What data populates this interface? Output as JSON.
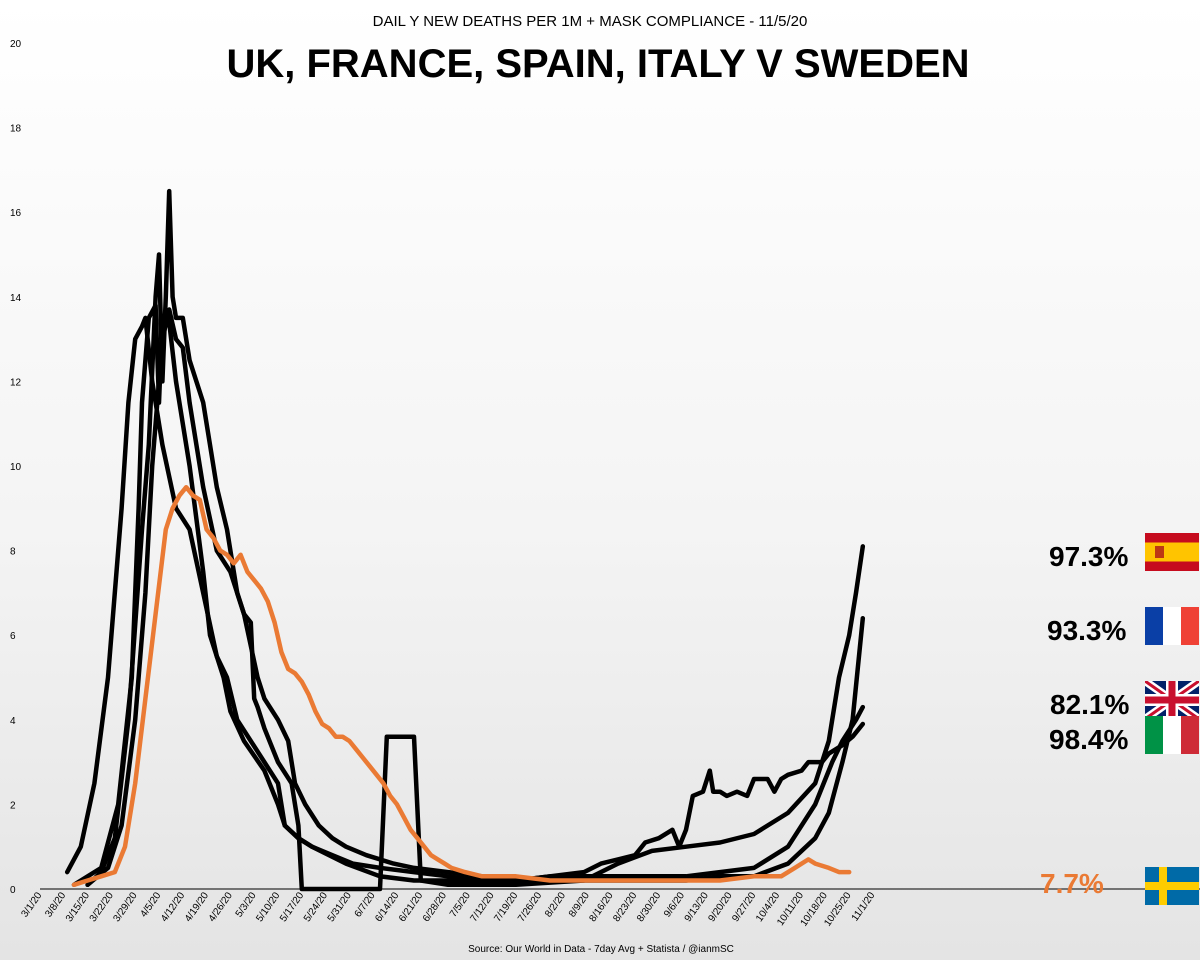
{
  "chart_data": {
    "type": "line",
    "subtitle": "DAIL Y NEW DEATHS PER 1M + MASK COMPLIANCE - 11/5/20",
    "title": "UK, FRANCE, SPAIN, ITALY V SWEDEN",
    "source": "Source: Our World in Data - 7day Avg + Statista  / @ianmSC",
    "ylim": [
      0,
      20
    ],
    "yticks": [
      "0",
      "2",
      "4",
      "6",
      "8",
      "10",
      "12",
      "14",
      "16",
      "18",
      "20"
    ],
    "x_labels": [
      "3/1/20",
      "3/8/20",
      "3/15/20",
      "3/22/20",
      "3/29/20",
      "4/5/20",
      "4/12/20",
      "4/19/20",
      "4/26/20",
      "5/3/20",
      "5/10/20",
      "5/17/20",
      "5/24/20",
      "5/31/20",
      "6/7/20",
      "6/14/20",
      "6/21/20",
      "6/28/20",
      "7/5/20",
      "7/12/20",
      "7/19/20",
      "7/26/20",
      "8/2/20",
      "8/9/20",
      "8/16/20",
      "8/23/20",
      "8/30/20",
      "9/6/20",
      "9/13/20",
      "9/20/20",
      "9/27/20",
      "10/4/20",
      "10/11/20",
      "10/18/20",
      "10/25/20",
      "11/1/20"
    ],
    "x_day_span": 250,
    "series": [
      {
        "label": "97.3%",
        "flag": "spain-flag-icon",
        "color": "#000000",
        "points": [
          [
            14,
            0.1
          ],
          [
            18,
            0.4
          ],
          [
            22,
            1.2
          ],
          [
            26,
            4.0
          ],
          [
            30,
            8.5
          ],
          [
            32,
            10.5
          ],
          [
            34,
            14.0
          ],
          [
            35,
            15.0
          ],
          [
            36,
            12.0
          ],
          [
            37,
            14.0
          ],
          [
            38,
            16.5
          ],
          [
            39,
            14.0
          ],
          [
            40,
            13.5
          ],
          [
            42,
            13.5
          ],
          [
            44,
            12.5
          ],
          [
            46,
            12.0
          ],
          [
            48,
            11.5
          ],
          [
            50,
            10.5
          ],
          [
            52,
            9.5
          ],
          [
            55,
            8.5
          ],
          [
            58,
            7.0
          ],
          [
            60,
            6.5
          ],
          [
            62,
            6.3
          ],
          [
            63,
            4.5
          ],
          [
            64,
            4.3
          ],
          [
            66,
            3.8
          ],
          [
            70,
            3.0
          ],
          [
            74,
            2.5
          ],
          [
            76,
            1.5
          ],
          [
            77,
            0.0
          ],
          [
            85,
            0.0
          ],
          [
            88,
            0.0
          ],
          [
            95,
            0.0
          ],
          [
            100,
            0.0
          ],
          [
            102,
            3.6
          ],
          [
            110,
            3.6
          ],
          [
            112,
            0.2
          ],
          [
            120,
            0.1
          ],
          [
            140,
            0.1
          ],
          [
            160,
            0.2
          ],
          [
            170,
            0.6
          ],
          [
            180,
            0.9
          ],
          [
            190,
            1.0
          ],
          [
            200,
            1.1
          ],
          [
            210,
            1.3
          ],
          [
            220,
            1.8
          ],
          [
            228,
            2.5
          ],
          [
            232,
            3.5
          ],
          [
            235,
            5.0
          ],
          [
            238,
            6.0
          ],
          [
            240,
            7.0
          ],
          [
            242,
            8.1
          ]
        ]
      },
      {
        "label": "93.3%",
        "flag": "france-flag-icon",
        "color": "#000000",
        "points": [
          [
            10,
            0.1
          ],
          [
            18,
            0.5
          ],
          [
            23,
            2.0
          ],
          [
            27,
            5.0
          ],
          [
            29,
            9.0
          ],
          [
            30,
            11.5
          ],
          [
            32,
            13.5
          ],
          [
            34,
            13.8
          ],
          [
            35,
            11.5
          ],
          [
            36,
            13.5
          ],
          [
            38,
            13.4
          ],
          [
            40,
            12.0
          ],
          [
            44,
            10.0
          ],
          [
            48,
            7.5
          ],
          [
            50,
            6.0
          ],
          [
            54,
            5.0
          ],
          [
            56,
            4.2
          ],
          [
            60,
            3.5
          ],
          [
            66,
            2.8
          ],
          [
            70,
            2.0
          ],
          [
            72,
            1.5
          ],
          [
            76,
            1.2
          ],
          [
            80,
            1.0
          ],
          [
            90,
            0.6
          ],
          [
            100,
            0.3
          ],
          [
            110,
            0.2
          ],
          [
            130,
            0.2
          ],
          [
            150,
            0.2
          ],
          [
            170,
            0.2
          ],
          [
            180,
            0.2
          ],
          [
            190,
            0.2
          ],
          [
            200,
            0.3
          ],
          [
            210,
            0.3
          ],
          [
            220,
            0.6
          ],
          [
            228,
            1.2
          ],
          [
            232,
            1.8
          ],
          [
            236,
            3.0
          ],
          [
            239,
            4.0
          ],
          [
            242,
            6.4
          ]
        ]
      },
      {
        "label": "82.1%",
        "flag": "uk-flag-icon",
        "color": "#000000",
        "points": [
          [
            14,
            0.1
          ],
          [
            20,
            0.5
          ],
          [
            24,
            1.5
          ],
          [
            28,
            4.0
          ],
          [
            31,
            7.0
          ],
          [
            33,
            10.0
          ],
          [
            36,
            13.0
          ],
          [
            38,
            13.7
          ],
          [
            40,
            13.0
          ],
          [
            42,
            12.8
          ],
          [
            44,
            11.5
          ],
          [
            46,
            10.5
          ],
          [
            48,
            9.5
          ],
          [
            52,
            8.0
          ],
          [
            56,
            7.5
          ],
          [
            60,
            6.5
          ],
          [
            64,
            5.0
          ],
          [
            66,
            4.5
          ],
          [
            70,
            4.0
          ],
          [
            73,
            3.5
          ],
          [
            75,
            2.5
          ],
          [
            78,
            2.0
          ],
          [
            82,
            1.5
          ],
          [
            86,
            1.2
          ],
          [
            90,
            1.0
          ],
          [
            96,
            0.8
          ],
          [
            104,
            0.6
          ],
          [
            110,
            0.5
          ],
          [
            120,
            0.4
          ],
          [
            140,
            0.2
          ],
          [
            150,
            0.3
          ],
          [
            160,
            0.3
          ],
          [
            170,
            0.3
          ],
          [
            180,
            0.3
          ],
          [
            190,
            0.3
          ],
          [
            200,
            0.4
          ],
          [
            210,
            0.5
          ],
          [
            220,
            1.0
          ],
          [
            228,
            2.0
          ],
          [
            233,
            3.0
          ],
          [
            236,
            3.5
          ],
          [
            240,
            4.0
          ],
          [
            242,
            4.3
          ]
        ]
      },
      {
        "label": "98.4%",
        "flag": "italy-flag-icon",
        "color": "#000000",
        "points": [
          [
            8,
            0.4
          ],
          [
            12,
            1.0
          ],
          [
            16,
            2.5
          ],
          [
            20,
            5.0
          ],
          [
            24,
            9.0
          ],
          [
            26,
            11.5
          ],
          [
            28,
            13.0
          ],
          [
            30,
            13.3
          ],
          [
            31,
            13.5
          ],
          [
            33,
            12.0
          ],
          [
            36,
            10.5
          ],
          [
            40,
            9.0
          ],
          [
            44,
            8.5
          ],
          [
            48,
            7.0
          ],
          [
            52,
            5.5
          ],
          [
            55,
            5.0
          ],
          [
            58,
            4.0
          ],
          [
            62,
            3.5
          ],
          [
            66,
            3.0
          ],
          [
            70,
            2.5
          ],
          [
            72,
            1.5
          ],
          [
            76,
            1.2
          ],
          [
            80,
            1.0
          ],
          [
            86,
            0.8
          ],
          [
            92,
            0.6
          ],
          [
            100,
            0.5
          ],
          [
            110,
            0.4
          ],
          [
            120,
            0.3
          ],
          [
            130,
            0.2
          ],
          [
            140,
            0.2
          ],
          [
            150,
            0.3
          ],
          [
            160,
            0.4
          ],
          [
            165,
            0.6
          ],
          [
            170,
            0.7
          ],
          [
            175,
            0.8
          ],
          [
            178,
            1.1
          ],
          [
            182,
            1.2
          ],
          [
            186,
            1.4
          ],
          [
            188,
            1.0
          ],
          [
            190,
            1.4
          ],
          [
            192,
            2.2
          ],
          [
            195,
            2.3
          ],
          [
            197,
            2.8
          ],
          [
            198,
            2.3
          ],
          [
            200,
            2.3
          ],
          [
            202,
            2.2
          ],
          [
            205,
            2.3
          ],
          [
            208,
            2.2
          ],
          [
            210,
            2.6
          ],
          [
            214,
            2.6
          ],
          [
            216,
            2.3
          ],
          [
            218,
            2.6
          ],
          [
            220,
            2.7
          ],
          [
            224,
            2.8
          ],
          [
            226,
            3.0
          ],
          [
            230,
            3.0
          ],
          [
            232,
            3.2
          ],
          [
            236,
            3.4
          ],
          [
            239,
            3.6
          ],
          [
            242,
            3.9
          ]
        ]
      },
      {
        "label": "7.7%",
        "flag": "sweden-flag-icon",
        "color": "#ea7a34",
        "points": [
          [
            10,
            0.1
          ],
          [
            14,
            0.2
          ],
          [
            18,
            0.3
          ],
          [
            22,
            0.4
          ],
          [
            25,
            1.0
          ],
          [
            28,
            2.5
          ],
          [
            31,
            4.5
          ],
          [
            34,
            6.5
          ],
          [
            37,
            8.5
          ],
          [
            39,
            9.0
          ],
          [
            41,
            9.3
          ],
          [
            43,
            9.5
          ],
          [
            45,
            9.3
          ],
          [
            47,
            9.2
          ],
          [
            49,
            8.5
          ],
          [
            51,
            8.3
          ],
          [
            53,
            8.0
          ],
          [
            55,
            7.9
          ],
          [
            57,
            7.7
          ],
          [
            59,
            7.9
          ],
          [
            61,
            7.5
          ],
          [
            63,
            7.3
          ],
          [
            65,
            7.1
          ],
          [
            67,
            6.8
          ],
          [
            69,
            6.3
          ],
          [
            71,
            5.6
          ],
          [
            73,
            5.2
          ],
          [
            75,
            5.1
          ],
          [
            77,
            4.9
          ],
          [
            79,
            4.6
          ],
          [
            81,
            4.2
          ],
          [
            83,
            3.9
          ],
          [
            85,
            3.8
          ],
          [
            87,
            3.6
          ],
          [
            89,
            3.6
          ],
          [
            91,
            3.5
          ],
          [
            93,
            3.3
          ],
          [
            95,
            3.1
          ],
          [
            97,
            2.9
          ],
          [
            99,
            2.7
          ],
          [
            101,
            2.5
          ],
          [
            103,
            2.2
          ],
          [
            105,
            2.0
          ],
          [
            107,
            1.7
          ],
          [
            109,
            1.4
          ],
          [
            111,
            1.2
          ],
          [
            113,
            1.0
          ],
          [
            115,
            0.8
          ],
          [
            117,
            0.7
          ],
          [
            119,
            0.6
          ],
          [
            121,
            0.5
          ],
          [
            125,
            0.4
          ],
          [
            130,
            0.3
          ],
          [
            135,
            0.3
          ],
          [
            140,
            0.3
          ],
          [
            150,
            0.2
          ],
          [
            160,
            0.2
          ],
          [
            170,
            0.2
          ],
          [
            180,
            0.2
          ],
          [
            190,
            0.2
          ],
          [
            200,
            0.2
          ],
          [
            210,
            0.3
          ],
          [
            218,
            0.3
          ],
          [
            222,
            0.5
          ],
          [
            226,
            0.7
          ],
          [
            228,
            0.6
          ],
          [
            232,
            0.5
          ],
          [
            235,
            0.4
          ],
          [
            238,
            0.4
          ]
        ]
      }
    ],
    "grid": false,
    "legend": "none"
  }
}
